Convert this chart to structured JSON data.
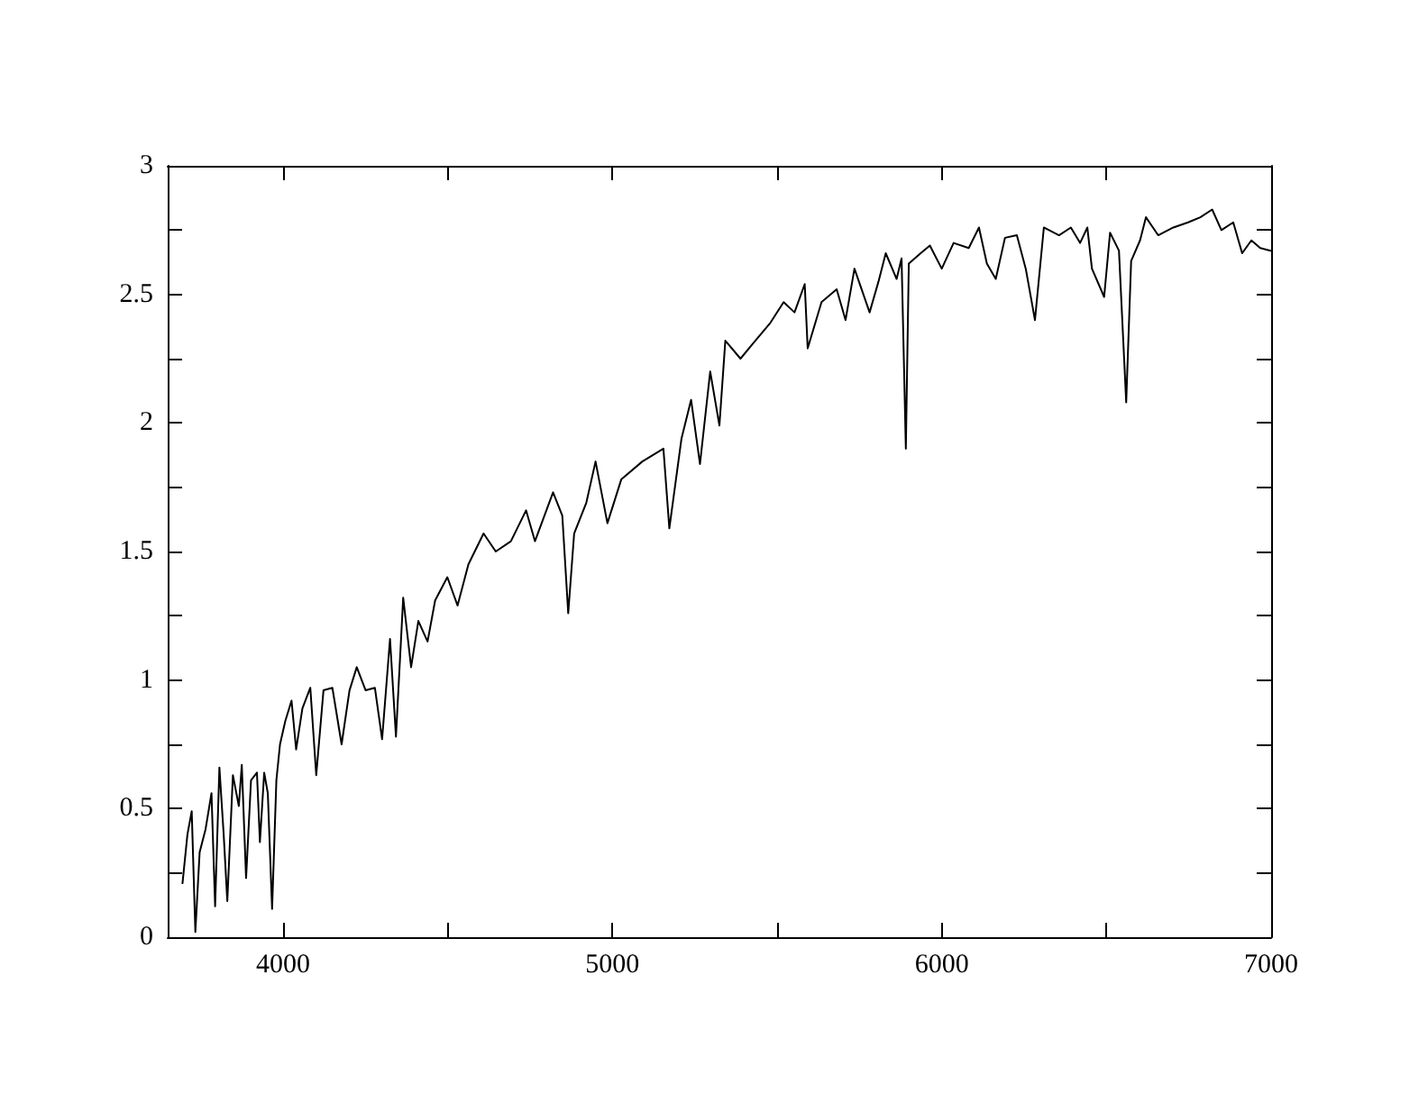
{
  "chart_data": {
    "type": "line",
    "x": [
      3695,
      3710,
      3723,
      3734,
      3747,
      3765,
      3783,
      3794,
      3807,
      3820,
      3831,
      3848,
      3866,
      3875,
      3888,
      3903,
      3921,
      3930,
      3943,
      3954,
      3967,
      3980,
      3991,
      4007,
      4026,
      4040,
      4059,
      4083,
      4101,
      4123,
      4150,
      4178,
      4202,
      4224,
      4251,
      4279,
      4301,
      4325,
      4343,
      4365,
      4389,
      4411,
      4439,
      4462,
      4499,
      4530,
      4563,
      4609,
      4646,
      4692,
      4738,
      4765,
      4820,
      4848,
      4866,
      4884,
      4921,
      4949,
      4985,
      5027,
      5091,
      5155,
      5173,
      5210,
      5239,
      5266,
      5297,
      5325,
      5343,
      5389,
      5434,
      5480,
      5520,
      5553,
      5584,
      5593,
      5635,
      5681,
      5708,
      5735,
      5781,
      5808,
      5830,
      5863,
      5878,
      5891,
      5900,
      5936,
      5964,
      6000,
      6036,
      6082,
      6113,
      6137,
      6164,
      6192,
      6228,
      6255,
      6283,
      6310,
      6356,
      6392,
      6420,
      6442,
      6456,
      6493,
      6511,
      6538,
      6560,
      6575,
      6602,
      6620,
      6657,
      6703,
      6748,
      6785,
      6821,
      6849,
      6885,
      6912,
      6940,
      6967,
      6998
    ],
    "series": [
      {
        "color": "#000000",
        "values": [
          0.21,
          0.4,
          0.49,
          0.02,
          0.33,
          0.42,
          0.56,
          0.12,
          0.66,
          0.4,
          0.14,
          0.63,
          0.51,
          0.67,
          0.23,
          0.61,
          0.64,
          0.37,
          0.64,
          0.56,
          0.11,
          0.61,
          0.75,
          0.84,
          0.92,
          0.73,
          0.89,
          0.97,
          0.63,
          0.96,
          0.97,
          0.75,
          0.96,
          1.05,
          0.96,
          0.97,
          0.77,
          1.16,
          0.78,
          1.32,
          1.05,
          1.23,
          1.15,
          1.31,
          1.4,
          1.29,
          1.45,
          1.57,
          1.5,
          1.54,
          1.66,
          1.54,
          1.73,
          1.64,
          1.26,
          1.57,
          1.69,
          1.85,
          1.61,
          1.78,
          1.85,
          1.9,
          1.59,
          1.94,
          2.09,
          1.84,
          2.2,
          1.99,
          2.32,
          2.25,
          2.32,
          2.39,
          2.47,
          2.43,
          2.54,
          2.29,
          2.47,
          2.52,
          2.4,
          2.6,
          2.43,
          2.55,
          2.66,
          2.56,
          2.64,
          1.9,
          2.62,
          2.66,
          2.69,
          2.6,
          2.7,
          2.68,
          2.76,
          2.62,
          2.56,
          2.72,
          2.73,
          2.6,
          2.4,
          2.76,
          2.73,
          2.76,
          2.7,
          2.76,
          2.6,
          2.49,
          2.74,
          2.67,
          2.08,
          2.63,
          2.71,
          2.8,
          2.73,
          2.76,
          2.78,
          2.8,
          2.83,
          2.75,
          2.78,
          2.66,
          2.71,
          2.68,
          2.67
        ]
      }
    ],
    "xlim": [
      3650,
      7000
    ],
    "xticks": [
      4000,
      {
        "value": 4500,
        "label": null
      },
      5000,
      {
        "value": 5500,
        "label": null
      },
      6000,
      {
        "value": 6500,
        "label": null
      },
      7000
    ],
    "ylim": [
      0,
      3
    ],
    "yticks": [
      0,
      {
        "value": 0.25,
        "label": null
      },
      0.5,
      {
        "value": 0.75,
        "label": null
      },
      1,
      {
        "value": 1.25,
        "label": null
      },
      1.5,
      {
        "value": 1.75,
        "label": null
      },
      2,
      {
        "value": 2.25,
        "label": null
      },
      2.5,
      {
        "value": 2.75,
        "label": null
      },
      3
    ],
    "grid": false,
    "legend": false,
    "marker": "none",
    "line_style": "solid"
  }
}
